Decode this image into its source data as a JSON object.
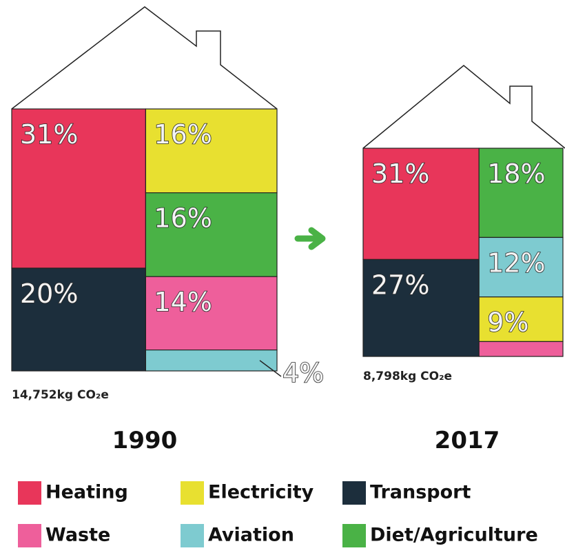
{
  "chart_data": [
    {
      "type": "treemap",
      "title": "1990",
      "subtitle": "14,752kg CO₂e",
      "categories": [
        "Heating",
        "Transport",
        "Electricity",
        "Diet/Agriculture",
        "Waste",
        "Aviation"
      ],
      "values": [
        31,
        20,
        16,
        16,
        14,
        4
      ],
      "value_labels": [
        "31%",
        "20%",
        "16%",
        "16%",
        "14%",
        "4%"
      ],
      "colors": [
        "#e8365a",
        "#1c2e3c",
        "#e8e030",
        "#4ab246",
        "#ee5f9b",
        "#7ecbd0"
      ]
    },
    {
      "type": "treemap",
      "title": "2017",
      "subtitle": "8,798kg CO₂e",
      "categories": [
        "Heating",
        "Transport",
        "Diet/Agriculture",
        "Aviation",
        "Electricity",
        "Waste"
      ],
      "values": [
        31,
        27,
        18,
        12,
        9,
        3
      ],
      "value_labels": [
        "31%",
        "27%",
        "18%",
        "12%",
        "9%",
        null
      ],
      "colors": [
        "#e8365a",
        "#1c2e3c",
        "#4ab246",
        "#7ecbd0",
        "#e8e030",
        "#ee5f9b"
      ]
    }
  ],
  "legend": [
    {
      "name": "Heating",
      "color": "#e8365a"
    },
    {
      "name": "Electricity",
      "color": "#e8e030"
    },
    {
      "name": "Transport",
      "color": "#1c2e3c"
    },
    {
      "name": "Waste",
      "color": "#ee5f9b"
    },
    {
      "name": "Aviation",
      "color": "#7ecbd0"
    },
    {
      "name": "Diet/Agriculture",
      "color": "#4ab246"
    }
  ]
}
